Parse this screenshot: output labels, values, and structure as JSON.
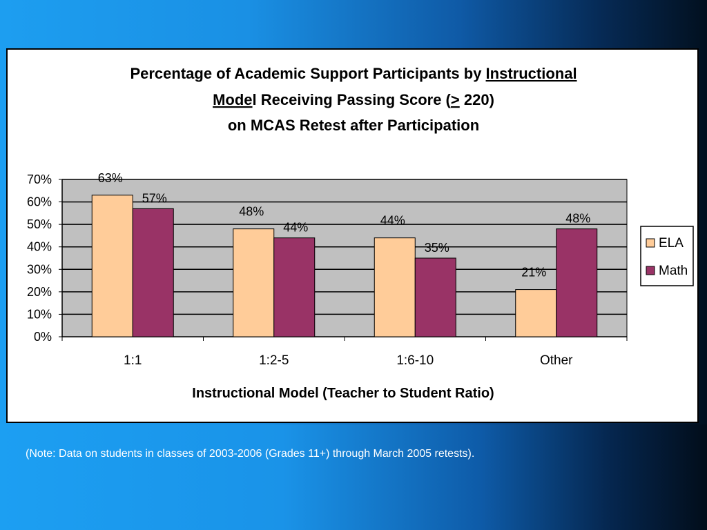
{
  "chart_data": {
    "type": "bar",
    "title_lines": [
      [
        {
          "text": "Percentage of Academic Support Participants by ",
          "underline": false
        },
        {
          "text": "Instructional ",
          "underline": true
        }
      ],
      [
        {
          "text": "Mode",
          "underline": true
        },
        {
          "text": "l Receiving Passing Score (",
          "underline": false
        },
        {
          "text": ">",
          "underline": true
        },
        {
          "text": " 220)",
          "underline": false
        }
      ],
      [
        {
          "text": "on MCAS Retest after Participation",
          "underline": false
        }
      ]
    ],
    "xlabel": "Instructional Model (Teacher to Student Ratio)",
    "ylabel": "",
    "categories": [
      "1:1",
      "1:2-5",
      "1:6-10",
      "Other"
    ],
    "series": [
      {
        "name": "ELA",
        "values": [
          63,
          48,
          44,
          21
        ],
        "labels": [
          "63%",
          "48%",
          "44%",
          "21%"
        ],
        "color": "#ffcc99"
      },
      {
        "name": "Math",
        "values": [
          57,
          44,
          35,
          48
        ],
        "labels": [
          "57%",
          "44%",
          "35%",
          "48%"
        ],
        "color": "#993366"
      }
    ],
    "ylim": [
      0,
      70
    ],
    "yticks": [
      0,
      10,
      20,
      30,
      40,
      50,
      60,
      70
    ],
    "ytick_labels": [
      "0%",
      "10%",
      "20%",
      "30%",
      "40%",
      "50%",
      "60%",
      "70%"
    ],
    "grid": true,
    "plot_background": "#c0c0c0",
    "legend_position": "right"
  },
  "note": "(Note: Data on students in classes of 2003-2006 (Grades 11+) through March 2005 retests)."
}
